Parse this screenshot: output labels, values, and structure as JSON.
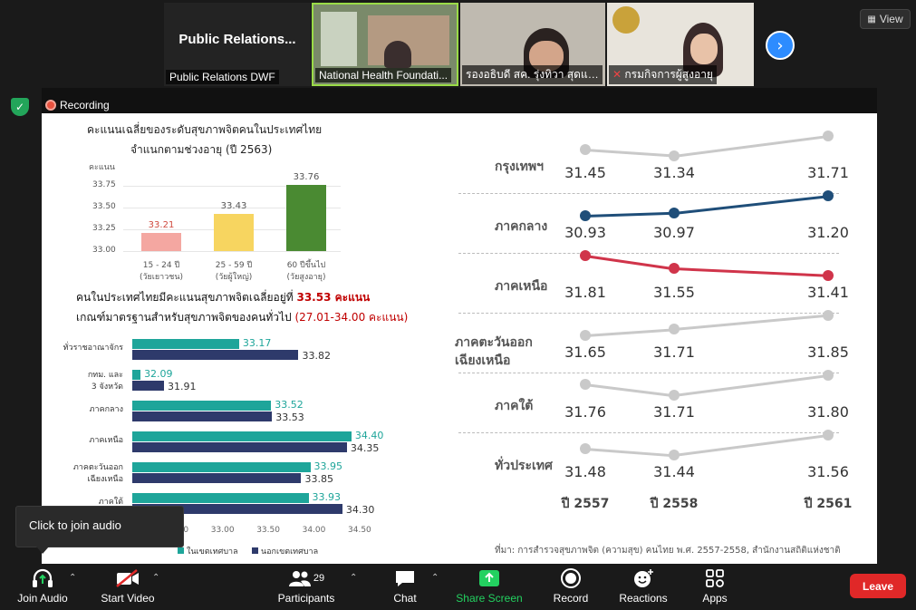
{
  "participants_strip": {
    "tiles": [
      {
        "name": "Public Relations DWF",
        "display": "Public  Relations..."
      },
      {
        "name": "National Health Foundati..."
      },
      {
        "name": "รองอธิบดี สค. รุ่งทิวา สุดแดน"
      },
      {
        "name": "กรมกิจการผู้สูงอายุ"
      }
    ],
    "view_label": "View"
  },
  "recording_label": "Recording",
  "slide": {
    "title_line1": "คะแนนเฉลี่ยของระดับสุขภาพจิตคนในประเทศไทย",
    "title_line2": "จำแนกตามช่วงอายุ (ปี 2563)",
    "axis_unit": "คะแนน",
    "summary_line1_prefix": "คนในประเทศไทยมีคะแนนสุขภาพจิตเฉลี่ยอยู่ที่",
    "summary_line1_value": "33.53 คะแนน",
    "summary_line2_prefix": "เกณฑ์มาตรฐานสำหรับสุขภาพจิตของคนทั่วไป",
    "summary_line2_value": "(27.01-34.00 คะแนน)",
    "source_line": "ที่มา: การสำรวจสุขภาพจิต (ความสุข) คนไทย พ.ศ. 2557-2558, สำนักงานสถิติแห่งชาติ"
  },
  "chart_data": [
    {
      "type": "bar",
      "title": "คะแนนเฉลี่ยของระดับสุขภาพจิตคนในประเทศไทย จำแนกตามช่วงอายุ (ปี 2563)",
      "ylabel": "คะแนน",
      "ylim": [
        33.0,
        33.75
      ],
      "yticks": [
        "33.75",
        "33.50",
        "33.25",
        "33.00"
      ],
      "categories": [
        {
          "line1": "15 - 24 ปี",
          "line2": "(วัยเยาวชน)"
        },
        {
          "line1": "25 - 59 ปี",
          "line2": "(วัยผู้ใหญ่)"
        },
        {
          "line1": "60 ปีขึ้นไป",
          "line2": "(วัยสูงอายุ)"
        }
      ],
      "values": [
        33.21,
        33.43,
        33.76
      ],
      "value_labels": [
        "33.21",
        "33.43",
        "33.76"
      ],
      "colors": [
        "#f4a7a1",
        "#f7d560",
        "#4a8a32"
      ]
    },
    {
      "type": "bar",
      "orientation": "horizontal",
      "xlim": [
        32.0,
        34.5
      ],
      "xticks": [
        "32.50",
        "33.00",
        "33.50",
        "34.00",
        "34.50"
      ],
      "regions": [
        {
          "line1": "ทั่วราชอาณาจักร",
          "line2": "",
          "inside": 33.17,
          "outside": 33.82,
          "inside_label": "33.17",
          "outside_label": "33.82"
        },
        {
          "line1": "กทม. และ",
          "line2": "3 จังหวัด",
          "inside": 32.09,
          "outside": 31.91,
          "inside_label": "32.09",
          "outside_label": "31.91"
        },
        {
          "line1": "ภาคกลาง",
          "line2": "",
          "inside": 33.52,
          "outside": 33.53,
          "inside_label": "33.52",
          "outside_label": "33.53"
        },
        {
          "line1": "ภาคเหนือ",
          "line2": "",
          "inside": 34.4,
          "outside": 34.35,
          "inside_label": "34.40",
          "outside_label": "34.35"
        },
        {
          "line1": "ภาคตะวันออก",
          "line2": "เฉียงเหนือ",
          "inside": 33.95,
          "outside": 33.85,
          "inside_label": "33.95",
          "outside_label": "33.85"
        },
        {
          "line1": "ภาคใต้",
          "line2": "",
          "inside": 33.93,
          "outside": 34.3,
          "inside_label": "33.93",
          "outside_label": "34.30"
        }
      ],
      "legend": [
        {
          "name": "ในเขตเทศบาล",
          "color": "#1ea59a"
        },
        {
          "name": "นอกเขตเทศบาล",
          "color": "#2e3a6b"
        }
      ]
    },
    {
      "type": "line",
      "x": [
        "ปี 2557",
        "ปี 2558",
        "ปี 2561"
      ],
      "series": [
        {
          "name": "กรุงเทพฯ",
          "values": [
            31.45,
            31.34,
            31.71
          ],
          "labels": [
            "31.45",
            "31.34",
            "31.71"
          ],
          "color": "#c9c9c9"
        },
        {
          "name": "ภาคกลาง",
          "values": [
            30.93,
            30.97,
            31.2
          ],
          "labels": [
            "30.93",
            "30.97",
            "31.20"
          ],
          "color": "#1f4e79"
        },
        {
          "name": "ภาคเหนือ",
          "values": [
            31.81,
            31.55,
            31.41
          ],
          "labels": [
            "31.81",
            "31.55",
            "31.41"
          ],
          "color": "#d0344a"
        },
        {
          "name": "ภาคตะวันออก|เฉียงเหนือ",
          "values": [
            31.65,
            31.71,
            31.85
          ],
          "labels": [
            "31.65",
            "31.71",
            "31.85"
          ],
          "color": "#c9c9c9"
        },
        {
          "name": "ภาคใต้",
          "values": [
            31.76,
            31.71,
            31.8
          ],
          "labels": [
            "31.76",
            "31.71",
            "31.80"
          ],
          "color": "#c9c9c9"
        },
        {
          "name": "ทั่วประเทศ",
          "values": [
            31.48,
            31.44,
            31.56
          ],
          "labels": [
            "31.48",
            "31.44",
            "31.56"
          ],
          "color": "#c9c9c9"
        }
      ]
    }
  ],
  "tooltip": "Click to join audio",
  "toolbar": {
    "join_audio": "Join Audio",
    "start_video": "Start Video",
    "participants": "Participants",
    "participants_count": "29",
    "chat": "Chat",
    "share_screen": "Share Screen",
    "record": "Record",
    "reactions": "Reactions",
    "apps": "Apps",
    "leave": "Leave"
  }
}
